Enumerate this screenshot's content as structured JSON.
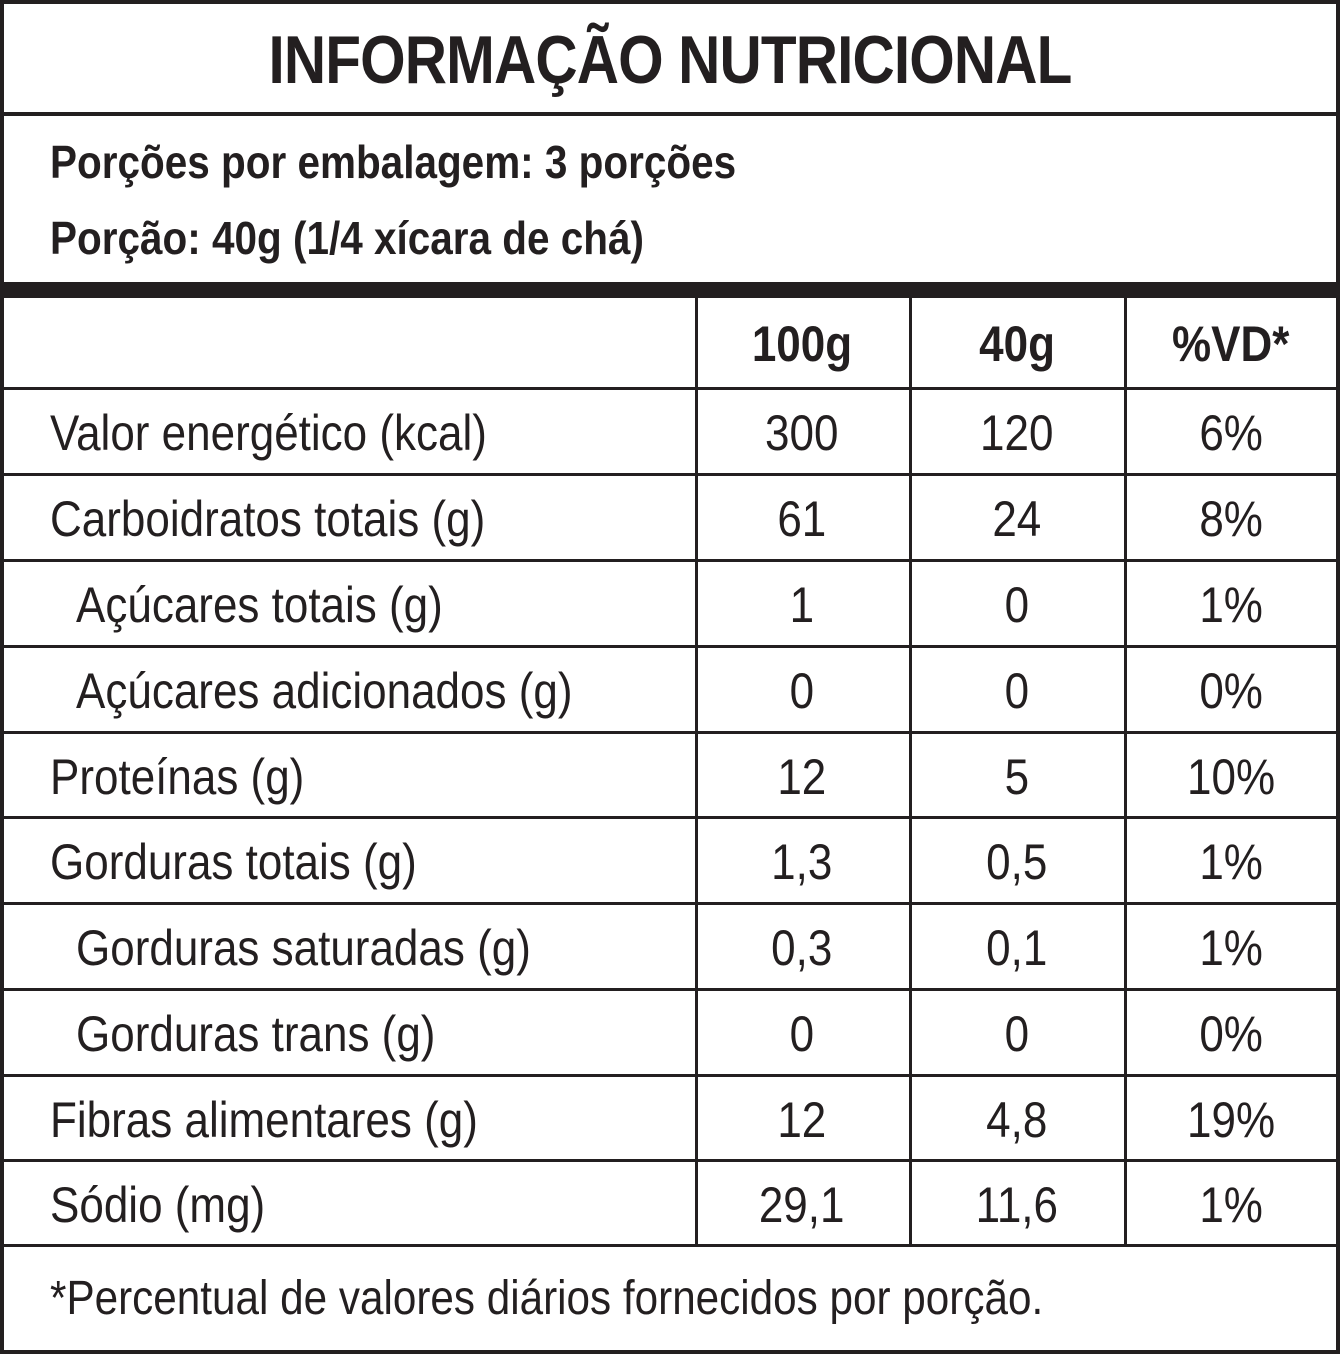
{
  "title": "INFORMAÇÃO NUTRICIONAL",
  "servings_per_package": "Porções por embalagem: 3 porções",
  "serving_size": "Porção: 40g (1/4 xícara de chá)",
  "columns": [
    "100g",
    "40g",
    "%VD*"
  ],
  "rows": [
    {
      "name": "Valor energético (kcal)",
      "per100g": "300",
      "per_portion": "120",
      "vd": "6%"
    },
    {
      "name": "Carboidratos totais (g)",
      "per100g": "61",
      "per_portion": "24",
      "vd": "8%"
    },
    {
      "name": "Açúcares totais (g)",
      "per100g": "1",
      "per_portion": "0",
      "vd": "1%"
    },
    {
      "name": "Açúcares adicionados (g)",
      "per100g": "0",
      "per_portion": "0",
      "vd": "0%"
    },
    {
      "name": "Proteínas (g)",
      "per100g": "12",
      "per_portion": "5",
      "vd": "10%"
    },
    {
      "name": "Gorduras totais (g)",
      "per100g": "1,3",
      "per_portion": "0,5",
      "vd": "1%"
    },
    {
      "name": "Gorduras saturadas (g)",
      "per100g": "0,3",
      "per_portion": "0,1",
      "vd": "1%"
    },
    {
      "name": "Gorduras trans (g)",
      "per100g": "0",
      "per_portion": "0",
      "vd": "0%"
    },
    {
      "name": "Fibras alimentares (g)",
      "per100g": "12",
      "per_portion": "4,8",
      "vd": "19%"
    },
    {
      "name": "Sódio (mg)",
      "per100g": "29,1",
      "per_portion": "11,6",
      "vd": "1%"
    }
  ],
  "footnote": "*Percentual de valores diários fornecidos por porção."
}
